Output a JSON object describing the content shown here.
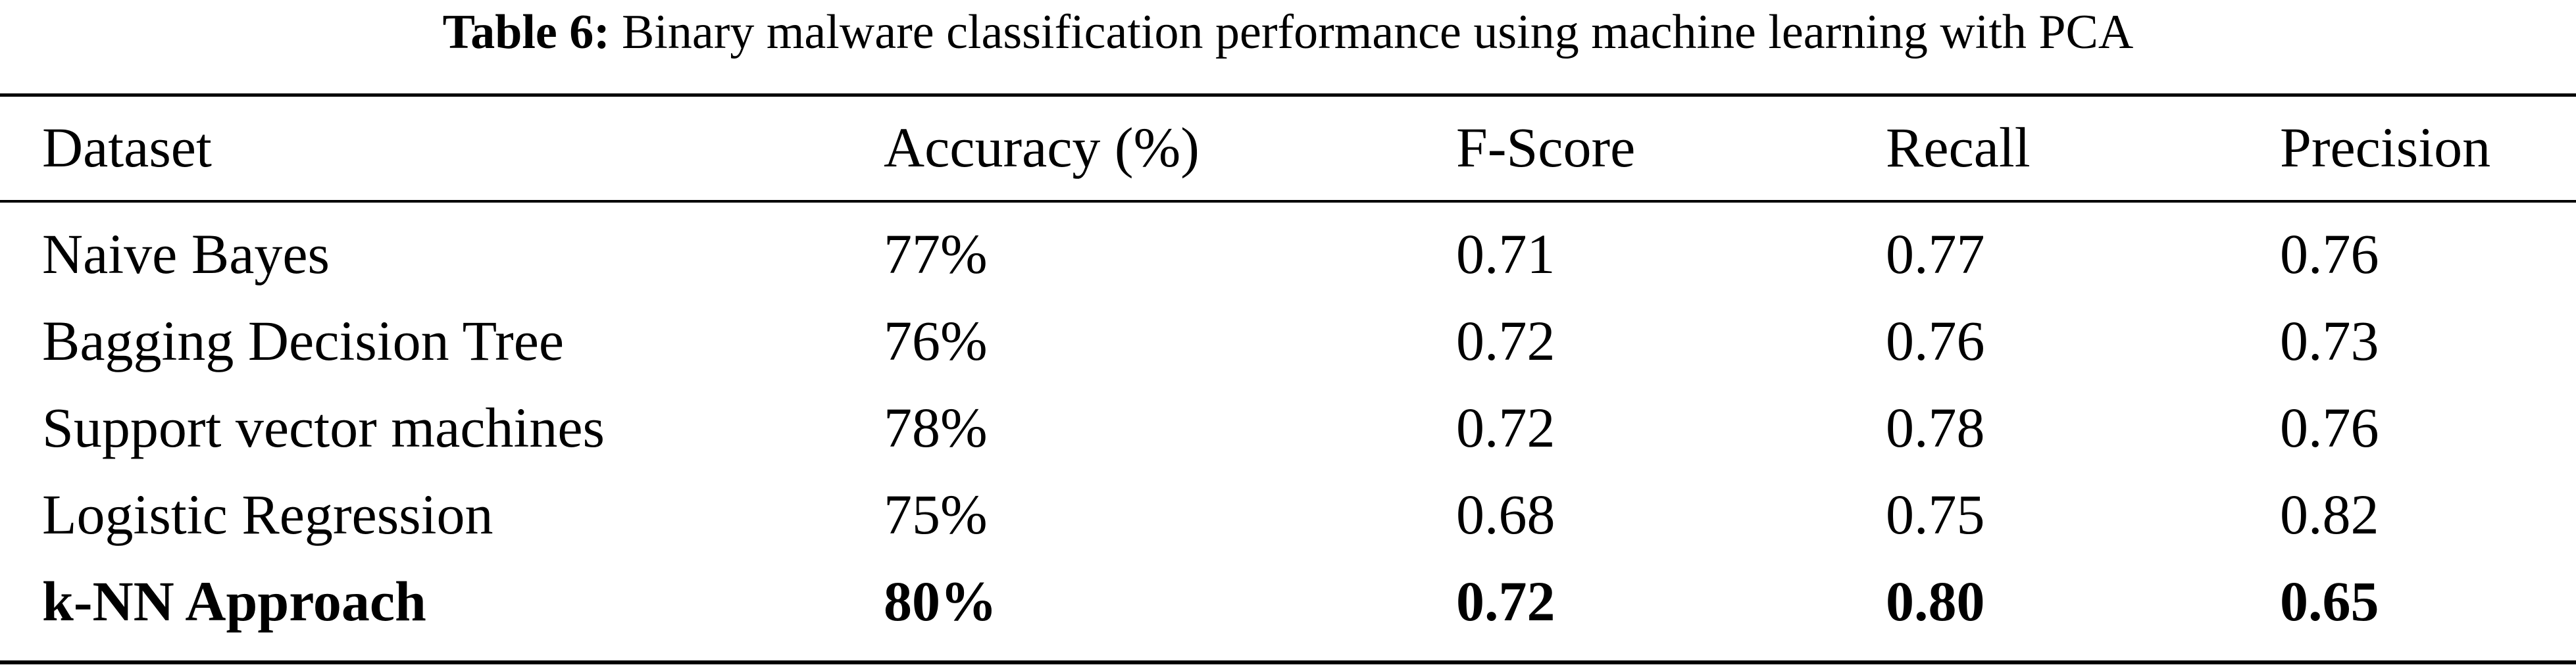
{
  "caption": {
    "label": "Table 6:",
    "text": "Binary malware classification performance using machine learning with PCA"
  },
  "table": {
    "headers": [
      "Dataset",
      "Accuracy (%)",
      "F-Score",
      "Recall",
      "Precision"
    ],
    "rows": [
      [
        "Naive Bayes",
        "77%",
        "0.71",
        "0.77",
        "0.76"
      ],
      [
        "Bagging Decision Tree",
        "76%",
        "0.72",
        "0.76",
        "0.73"
      ],
      [
        "Support vector machines",
        "78%",
        "0.72",
        "0.78",
        "0.76"
      ],
      [
        "Logistic Regression",
        "75%",
        "0.68",
        "0.75",
        "0.82"
      ],
      [
        "k-NN Approach",
        "80%",
        "0.72",
        "0.80",
        "0.65"
      ]
    ],
    "bold_row_index": 4
  }
}
